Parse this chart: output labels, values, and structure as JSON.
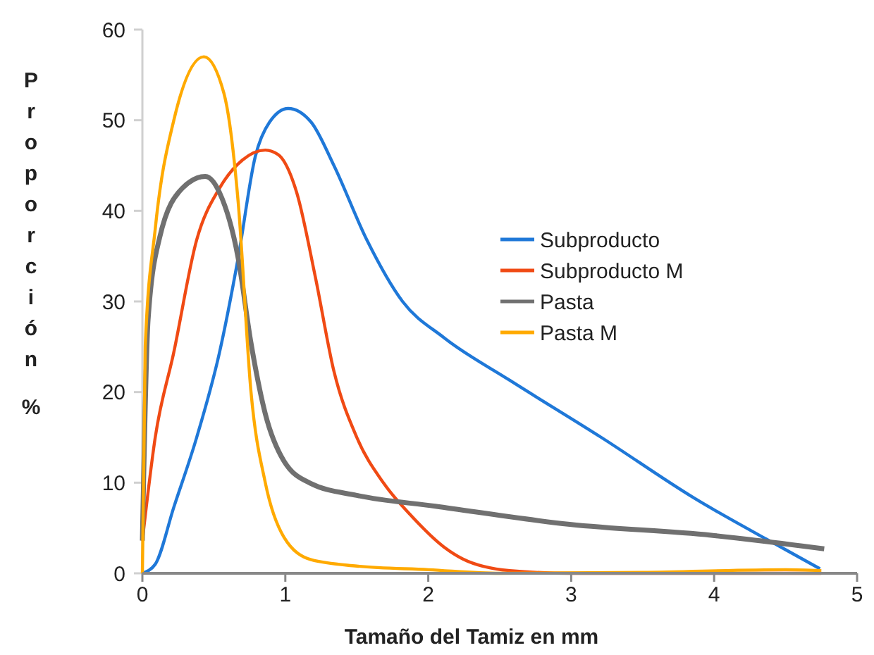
{
  "chart_data": {
    "type": "line",
    "xlabel": "Tamaño del Tamiz en mm",
    "ylabel": "Proporción %",
    "xlim": [
      0,
      5
    ],
    "ylim": [
      0,
      60
    ],
    "xticks": [
      0,
      1,
      2,
      3,
      4,
      5
    ],
    "yticks": [
      0,
      10,
      20,
      30,
      40,
      50,
      60
    ],
    "grid": false,
    "legend": "right",
    "marker": "none",
    "line_style": "solid",
    "series": [
      {
        "name": "Subproducto",
        "color": "#1f78d8",
        "x": [
          0,
          0.09,
          0.22,
          0.38,
          0.54,
          0.67,
          0.79,
          0.89,
          1.02,
          1.18,
          1.34,
          1.57,
          1.82,
          2.11,
          2.57,
          3.21,
          3.86,
          4.5,
          4.74
        ],
        "values": [
          0,
          1,
          7.3,
          15,
          24.4,
          34.8,
          46,
          49.8,
          51.3,
          49.8,
          45,
          36.8,
          30,
          26,
          21.3,
          15,
          8.3,
          2.6,
          0.5
        ]
      },
      {
        "name": "Subproducto M",
        "color": "#f04a14",
        "x": [
          0,
          0.09,
          0.22,
          0.38,
          0.54,
          0.7,
          0.86,
          0.95,
          1.08,
          1.21,
          1.34,
          1.5,
          1.69,
          1.89,
          2.11,
          2.24,
          2.57,
          3,
          4,
          4.75
        ],
        "values": [
          3.6,
          15,
          24.4,
          36.8,
          42.5,
          45.6,
          46.7,
          46.2,
          42,
          32.7,
          22.3,
          15,
          9.9,
          6.2,
          2.9,
          1.6,
          0.3,
          0,
          0,
          0
        ]
      },
      {
        "name": "Pasta",
        "color": "#707070",
        "x": [
          0,
          0.04,
          0.12,
          0.28,
          0.44,
          0.54,
          0.67,
          0.76,
          0.86,
          0.99,
          1.18,
          1.5,
          2.05,
          2.99,
          3.98,
          4.77
        ],
        "values": [
          3.6,
          28,
          37,
          42.5,
          43.8,
          42,
          34.8,
          25.4,
          17.6,
          12.4,
          9.9,
          8.6,
          7.4,
          5.4,
          4.2,
          2.7
        ]
      },
      {
        "name": "Pasta M",
        "color": "#ffaa00",
        "x": [
          0,
          0.02,
          0.09,
          0.22,
          0.43,
          0.57,
          0.67,
          0.76,
          0.86,
          0.99,
          1.18,
          1.5,
          2,
          2.5,
          3.5,
          4.5,
          4.75
        ],
        "values": [
          0,
          25,
          38,
          50,
          57,
          53,
          41,
          20,
          10,
          4,
          1.5,
          0.8,
          0.4,
          0,
          0.1,
          0.4,
          0.3
        ]
      }
    ]
  }
}
